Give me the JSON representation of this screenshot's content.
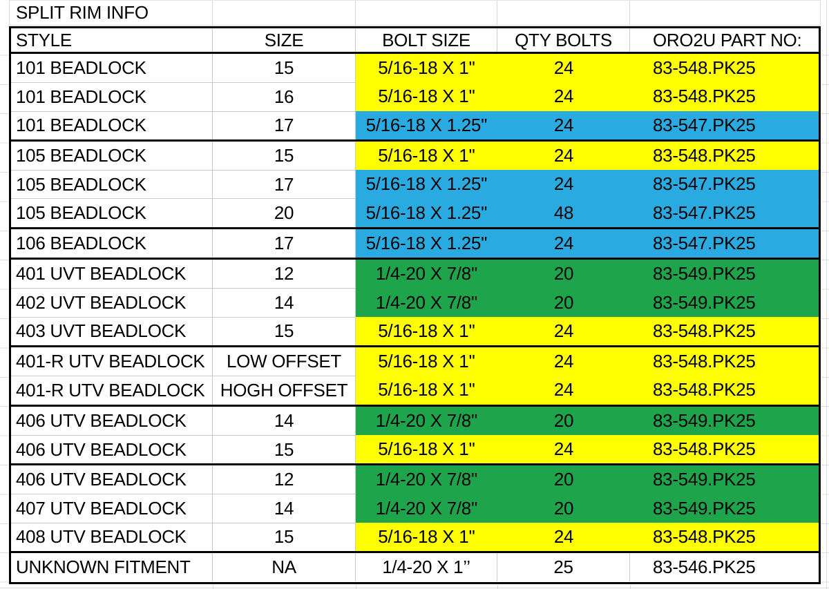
{
  "title": "SPLIT RIM INFO",
  "columns": [
    "STYLE",
    "SIZE",
    "BOLT SIZE",
    "QTY BOLTS",
    "ORO2U PART NO:"
  ],
  "highlight_colors": {
    "yellow": "#FFFF00",
    "blue": "#29ABE2",
    "green": "#1EA54B",
    "white": "#FFFFFF"
  },
  "groups": [
    {
      "rows": [
        {
          "style": "101 BEADLOCK",
          "size": "15",
          "bolt_size": "5/16-18 X 1''",
          "qty": "24",
          "part_no": "83-548.PK25",
          "highlight": "yellow"
        },
        {
          "style": "101 BEADLOCK",
          "size": "16",
          "bolt_size": "5/16-18 X 1''",
          "qty": "24",
          "part_no": "83-548.PK25",
          "highlight": "yellow"
        },
        {
          "style": "101 BEADLOCK",
          "size": "17",
          "bolt_size": "5/16-18 X 1.25''",
          "qty": "24",
          "part_no": "83-547.PK25",
          "highlight": "blue"
        }
      ]
    },
    {
      "rows": [
        {
          "style": "105 BEADLOCK",
          "size": "15",
          "bolt_size": "5/16-18 X 1''",
          "qty": "24",
          "part_no": "83-548.PK25",
          "highlight": "yellow"
        },
        {
          "style": "105 BEADLOCK",
          "size": "17",
          "bolt_size": "5/16-18 X 1.25''",
          "qty": "24",
          "part_no": "83-547.PK25",
          "highlight": "blue"
        },
        {
          "style": "105 BEADLOCK",
          "size": "20",
          "bolt_size": "5/16-18 X 1.25''",
          "qty": "48",
          "part_no": "83-547.PK25",
          "highlight": "blue"
        }
      ]
    },
    {
      "rows": [
        {
          "style": "106 BEADLOCK",
          "size": "17",
          "bolt_size": "5/16-18 X 1.25''",
          "qty": "24",
          "part_no": "83-547.PK25",
          "highlight": "blue"
        }
      ]
    },
    {
      "rows": [
        {
          "style": "401 UVT BEADLOCK",
          "size": "12",
          "bolt_size": "1/4-20 X 7/8''",
          "qty": "20",
          "part_no": "83-549.PK25",
          "highlight": "green"
        },
        {
          "style": "402 UVT BEADLOCK",
          "size": "14",
          "bolt_size": "1/4-20 X 7/8''",
          "qty": "20",
          "part_no": "83-549.PK25",
          "highlight": "green"
        },
        {
          "style": "403 UVT BEADLOCK",
          "size": "15",
          "bolt_size": "5/16-18 X 1''",
          "qty": "24",
          "part_no": "83-548.PK25",
          "highlight": "yellow"
        }
      ]
    },
    {
      "rows": [
        {
          "style": "401-R UTV BEADLOCK",
          "size": "LOW OFFSET",
          "bolt_size": "5/16-18 X 1''",
          "qty": "24",
          "part_no": "83-548.PK25",
          "highlight": "yellow"
        },
        {
          "style": "401-R UTV BEADLOCK",
          "size": "HOGH OFFSET",
          "bolt_size": "5/16-18 X 1''",
          "qty": "24",
          "part_no": "83-548.PK25",
          "highlight": "yellow"
        }
      ]
    },
    {
      "rows": [
        {
          "style": "406 UTV BEADLOCK",
          "size": "14",
          "bolt_size": "1/4-20 X 7/8''",
          "qty": "20",
          "part_no": "83-549.PK25",
          "highlight": "green"
        },
        {
          "style": "406 UTV BEADLOCK",
          "size": "15",
          "bolt_size": "5/16-18 X 1''",
          "qty": "24",
          "part_no": "83-548.PK25",
          "highlight": "yellow"
        }
      ]
    },
    {
      "rows": [
        {
          "style": "406 UTV BEADLOCK",
          "size": "12",
          "bolt_size": "1/4-20 X 7/8''",
          "qty": "20",
          "part_no": "83-549.PK25",
          "highlight": "green"
        },
        {
          "style": "407 UTV BEADLOCK",
          "size": "14",
          "bolt_size": "1/4-20 X 7/8''",
          "qty": "20",
          "part_no": "83-549.PK25",
          "highlight": "green"
        },
        {
          "style": "408 UTV BEADLOCK",
          "size": "15",
          "bolt_size": "5/16-18 X 1''",
          "qty": "24",
          "part_no": "83-548.PK25",
          "highlight": "yellow"
        }
      ]
    },
    {
      "rows": [
        {
          "style": "UNKNOWN FITMENT",
          "size": "NA",
          "bolt_size": "1/4-20 X 1’’",
          "qty": "25",
          "part_no": "83-546.PK25",
          "highlight": "white"
        }
      ]
    }
  ]
}
